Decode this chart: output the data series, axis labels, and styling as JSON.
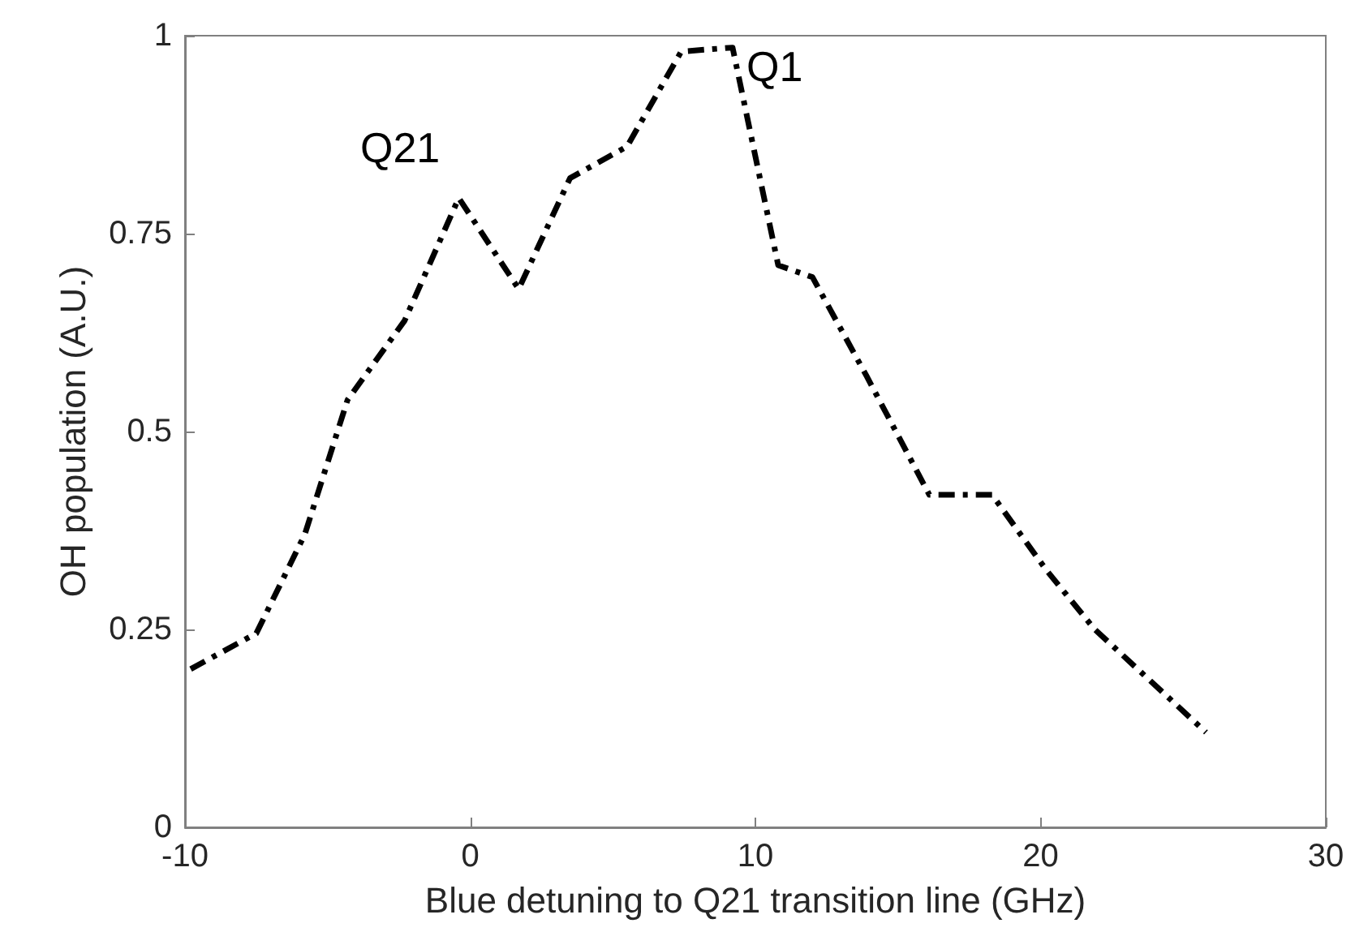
{
  "chart_data": {
    "type": "line",
    "xlabel": "Blue detuning to Q21 transition line (GHz)",
    "ylabel": "OH population (A.U.)",
    "xlim": [
      -10,
      30
    ],
    "xticks": [
      -10,
      0,
      10,
      20,
      30
    ],
    "ylim": [
      0,
      1
    ],
    "yticks": [
      0,
      0.25,
      0.5,
      0.75,
      1
    ],
    "grid": false,
    "marker": "none",
    "line_style": "dashed",
    "series": [
      {
        "color": "#000000",
        "x": [
          -9.8,
          -7.5,
          -5.8,
          -4.3,
          -2.3,
          -0.4,
          1.7,
          3.5,
          5.5,
          7.4,
          9.2,
          10.8,
          12.0,
          13.9,
          16.1,
          18.3,
          20.2,
          21.9,
          25.8
        ],
        "values": [
          0.2,
          0.245,
          0.37,
          0.54,
          0.64,
          0.795,
          0.68,
          0.82,
          0.86,
          0.98,
          0.985,
          0.71,
          0.695,
          0.57,
          0.42,
          0.42,
          0.325,
          0.25,
          0.12
        ]
      }
    ],
    "annotations": [
      "Q21",
      "Q1"
    ]
  }
}
